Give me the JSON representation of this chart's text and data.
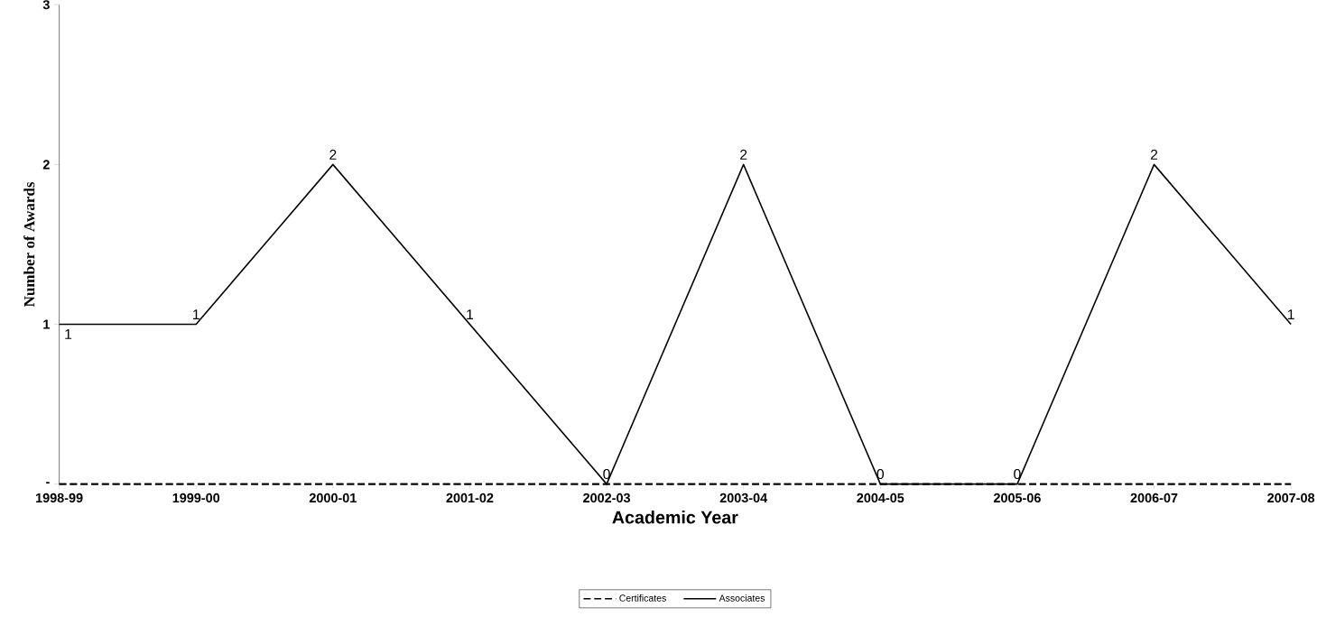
{
  "chart_data": {
    "type": "line",
    "xlabel": "Academic Year",
    "ylabel": "Number of Awards",
    "categories": [
      "1998-99",
      "1999-00",
      "2000-01",
      "2001-02",
      "2002-03",
      "2003-04",
      "2004-05",
      "2005-06",
      "2006-07",
      "2007-08"
    ],
    "series": [
      {
        "name": "Certificates",
        "color": "#000000",
        "line_style": "dashed",
        "values": [
          0,
          0,
          0,
          0,
          0,
          0,
          0,
          0,
          0,
          0
        ]
      },
      {
        "name": "Associates",
        "color": "#000000",
        "line_style": "solid",
        "values": [
          1,
          1,
          2,
          1,
          0,
          2,
          0,
          0,
          2,
          1
        ],
        "value_labels": [
          "1",
          "1",
          "2",
          "1",
          "0",
          "2",
          "0",
          "0",
          "2",
          "1"
        ]
      }
    ],
    "ylim": [
      0,
      3
    ],
    "yticks": [
      {
        "value": 0,
        "label": "-"
      },
      1,
      2,
      3
    ],
    "grid": false,
    "legend": "bottom",
    "marker": "none"
  }
}
